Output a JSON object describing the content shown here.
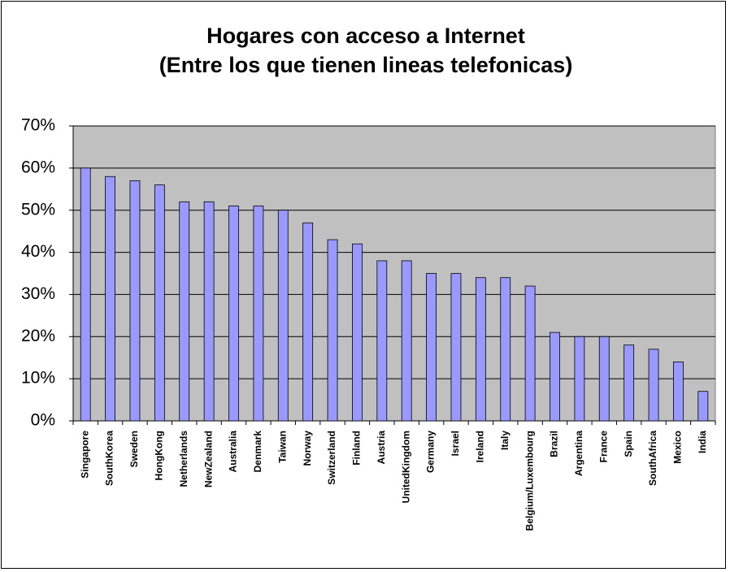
{
  "chart_data": {
    "type": "bar",
    "title": "Hogares con acceso a Internet",
    "subtitle": "(Entre los que tienen lineas telefonicas)",
    "categories": [
      "Singapore",
      "SouthKorea",
      "Sweden",
      "HongKong",
      "Netherlands",
      "NewZealand",
      "Australia",
      "Denmark",
      "Taiwan",
      "Norway",
      "Switzerland",
      "Finland",
      "Austria",
      "UnitedKingdom",
      "Germany",
      "Israel",
      "Ireland",
      "Italy",
      "Belgium/Luxembourg",
      "Brazil",
      "Argentina",
      "France",
      "Spain",
      "SouthAfrica",
      "Mexico",
      "India"
    ],
    "values": [
      60,
      58,
      57,
      56,
      52,
      52,
      51,
      51,
      50,
      47,
      43,
      42,
      38,
      38,
      35,
      35,
      34,
      34,
      32,
      21,
      20,
      20,
      18,
      17,
      14,
      7
    ],
    "color": "#9999ff",
    "ylim": [
      0,
      70
    ],
    "yticks": [
      {
        "value": 0,
        "label": "0%"
      },
      {
        "value": 10,
        "label": "10%"
      },
      {
        "value": 20,
        "label": "20%"
      },
      {
        "value": 30,
        "label": "30%"
      },
      {
        "value": 40,
        "label": "40%"
      },
      {
        "value": 50,
        "label": "50%"
      },
      {
        "value": 60,
        "label": "60%"
      },
      {
        "value": 70,
        "label": "70%"
      }
    ],
    "grid": true
  }
}
